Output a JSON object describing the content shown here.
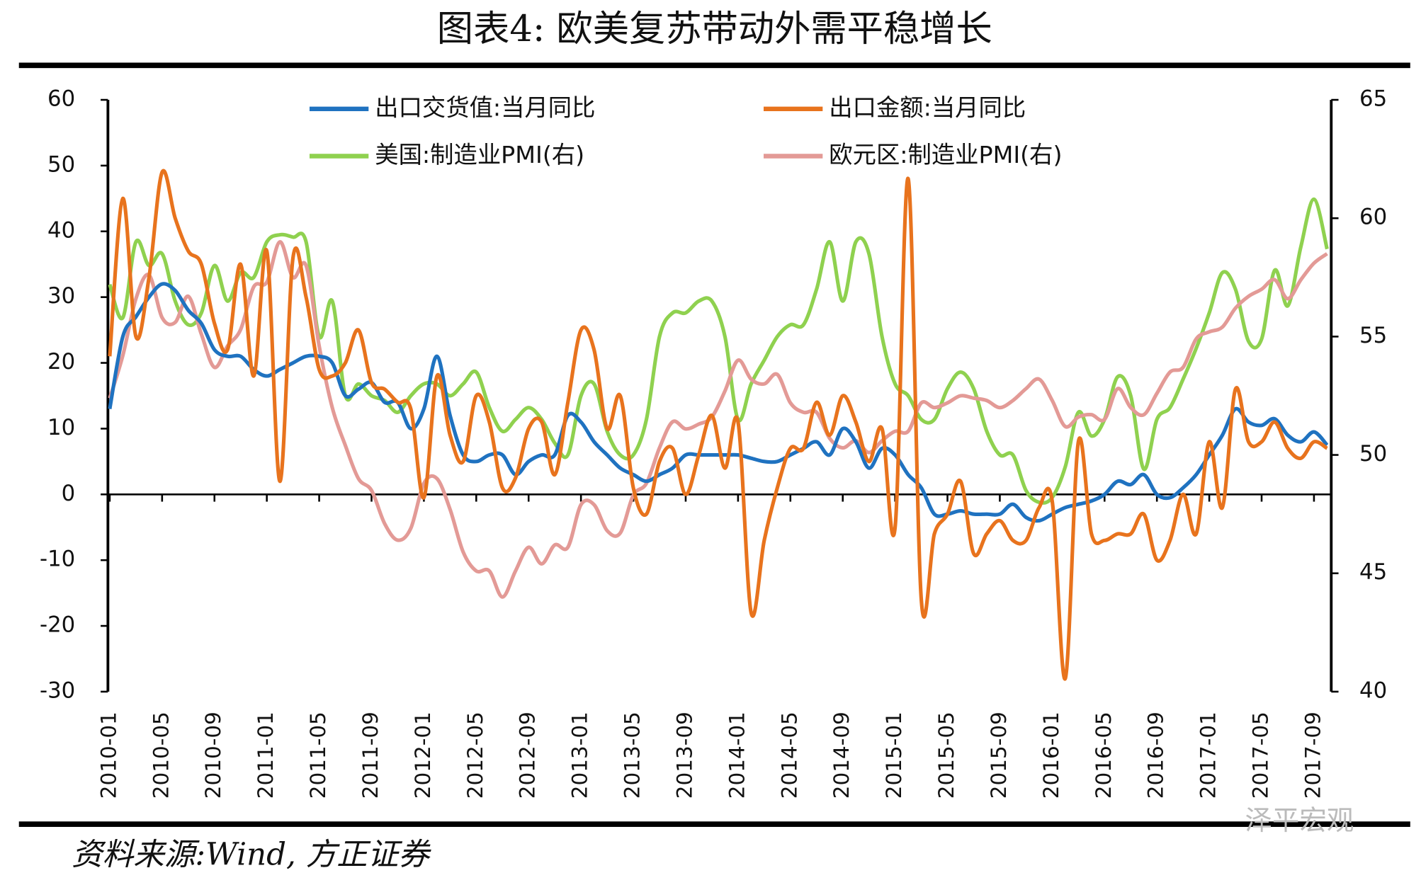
{
  "chart_data": {
    "type": "line",
    "title": "图表4:  欧美复苏带动外需平稳增长",
    "source": "资料来源:Wind, 方正证券",
    "watermark": "泽平宏观",
    "categories": [
      "2010-01",
      null,
      null,
      null,
      "2010-05",
      null,
      null,
      null,
      "2010-09",
      null,
      null,
      null,
      "2011-01",
      null,
      null,
      null,
      "2011-05",
      null,
      null,
      null,
      "2011-09",
      null,
      null,
      null,
      "2012-01",
      null,
      null,
      null,
      "2012-05",
      null,
      null,
      null,
      "2012-09",
      null,
      null,
      null,
      "2013-01",
      null,
      null,
      null,
      "2013-05",
      null,
      null,
      null,
      "2013-09",
      null,
      null,
      null,
      "2014-01",
      null,
      null,
      null,
      "2014-05",
      null,
      null,
      null,
      "2014-09",
      null,
      null,
      null,
      "2015-01",
      null,
      null,
      null,
      "2015-05",
      null,
      null,
      null,
      "2015-09",
      null,
      null,
      null,
      "2016-01",
      null,
      null,
      null,
      "2016-05",
      null,
      null,
      null,
      "2016-09",
      null,
      null,
      null,
      "2017-01",
      null,
      null,
      null,
      "2017-05",
      null,
      null,
      null,
      "2017-09",
      null
    ],
    "series": [
      {
        "name": "出口交货值:当月同比",
        "color": "#1f72c0",
        "axis": "y",
        "values": [
          13,
          24,
          27,
          30,
          32,
          31,
          28,
          26,
          22,
          21,
          21,
          19,
          18,
          19,
          20,
          21,
          21,
          20,
          15,
          16,
          17,
          14,
          14,
          10,
          13,
          21,
          12,
          6,
          5,
          6,
          6,
          3,
          5,
          6,
          6,
          12,
          11,
          8,
          6,
          4,
          3,
          2,
          3,
          4,
          6,
          6,
          6,
          6,
          6,
          5.5,
          5,
          5,
          6,
          7,
          8,
          6,
          10,
          8,
          4,
          7,
          6,
          3,
          1,
          -3,
          -3,
          -2.5,
          -3,
          -3,
          -3,
          -1.5,
          -3.5,
          -4,
          -3,
          -2,
          -1.5,
          -1,
          0,
          2,
          1.5,
          3,
          0,
          -0.5,
          1,
          3,
          6,
          9,
          13,
          11,
          10.5,
          11.5,
          9,
          8,
          9.5,
          7.5
        ]
      },
      {
        "name": "出口金额:当月同比",
        "color": "#e8731d",
        "axis": "y",
        "values": [
          21,
          45,
          24,
          33,
          49,
          42,
          37,
          35,
          26,
          22,
          35,
          18,
          37,
          2,
          36,
          30,
          19,
          18,
          20,
          25,
          17,
          16,
          14,
          13,
          -0.5,
          18,
          9,
          5,
          15,
          11,
          1,
          2.5,
          10,
          11,
          3,
          14,
          25,
          22,
          10,
          15,
          1,
          -3,
          5,
          7,
          0,
          6,
          12,
          4,
          11,
          -18,
          -7,
          1,
          7,
          7,
          14,
          9,
          15,
          11,
          5,
          10,
          -5,
          48,
          -16,
          -6,
          -3,
          2,
          -9,
          -6,
          -4,
          -7,
          -7,
          -2,
          -1,
          -28,
          8,
          -6,
          -7,
          -6,
          -6,
          -3,
          -10,
          -7,
          0,
          -6,
          8,
          -2,
          16,
          8,
          8,
          11,
          7,
          5.5,
          8,
          7
        ]
      },
      {
        "name": "美国:制造业PMI(右)",
        "color": "#8fd14f",
        "axis": "y2",
        "values": [
          57.2,
          55.8,
          59,
          58,
          58.5,
          56.5,
          55.5,
          56,
          58,
          56.5,
          57.7,
          57.5,
          59,
          59.3,
          59.2,
          59,
          55,
          56.5,
          52.5,
          53,
          52.5,
          52.3,
          51.8,
          52.5,
          53,
          53,
          52.5,
          53,
          53.5,
          52,
          51,
          51.5,
          52,
          51.5,
          50.5,
          50,
          52.5,
          53,
          51,
          50,
          50,
          51.5,
          55,
          56,
          56,
          56.5,
          56.5,
          55,
          51.5,
          53,
          54,
          55,
          55.5,
          55.5,
          57,
          59,
          56.5,
          59,
          58.5,
          55,
          53,
          52.5,
          51.5,
          51.5,
          52.8,
          53.5,
          52.8,
          51,
          50,
          50,
          48.5,
          48,
          48.2,
          49.5,
          51.8,
          50.8,
          51.5,
          53.3,
          52.5,
          49.4,
          51.5,
          52,
          53.2,
          54.5,
          56,
          57.7,
          57,
          54.8,
          54.9,
          57.8,
          56.3,
          58.8,
          60.8,
          58.7
        ]
      },
      {
        "name": "欧元区:制造业PMI(右)",
        "color": "#e39a96",
        "axis": "y2",
        "values": [
          52.4,
          54.2,
          56.6,
          57.6,
          55.8,
          55.6,
          56.7,
          55.1,
          53.7,
          54.6,
          55.3,
          57.1,
          57.3,
          59,
          57.5,
          58,
          54.6,
          52,
          50.4,
          49,
          48.5,
          47.1,
          46.4,
          46.9,
          48.8,
          49,
          47.7,
          45.9,
          45.1,
          45.1,
          44,
          45.1,
          46.1,
          45.4,
          46.2,
          46.1,
          47.9,
          47.9,
          46.8,
          46.7,
          48.3,
          48.8,
          50.3,
          51.4,
          51.1,
          51.3,
          51.6,
          52.7,
          54,
          53.2,
          53,
          53.4,
          52.2,
          51.8,
          51.8,
          50.7,
          50.3,
          50.6,
          50.1,
          50.6,
          51,
          51,
          52.2,
          52,
          52.2,
          52.5,
          52.4,
          52.3,
          52,
          52.3,
          52.8,
          53.2,
          52.3,
          51.2,
          51.6,
          51.7,
          51.5,
          52.8,
          52,
          51.7,
          52.6,
          53.5,
          53.7,
          54.9,
          55.2,
          55.4,
          56.2,
          56.7,
          57,
          57.4,
          56.6,
          57.4,
          58.1,
          58.5
        ]
      }
    ],
    "ylim": [
      -30,
      60
    ],
    "yticks": [
      60,
      50,
      40,
      30,
      20,
      10,
      0,
      -10,
      -20,
      -30
    ],
    "y2lim": [
      40,
      65
    ],
    "y2ticks": [
      65,
      60,
      55,
      50,
      45,
      40
    ],
    "grid": false
  }
}
